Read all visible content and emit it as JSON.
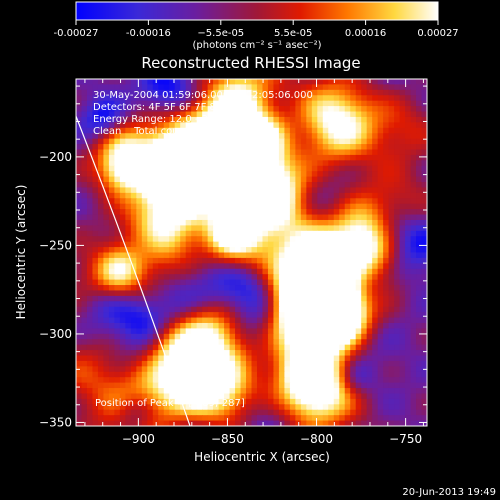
{
  "chart_data": {
    "type": "heatmap",
    "title": "Reconstructed RHESSI Image",
    "xlabel": "Heliocentric X (arcsec)",
    "ylabel": "Heliocentric Y (arcsec)",
    "xlim": [
      -935,
      -738
    ],
    "ylim": [
      -352,
      -156
    ],
    "x_ticks": [
      -900,
      -850,
      -800,
      -750
    ],
    "y_ticks": [
      -200,
      -250,
      -300,
      -350
    ],
    "colorbar": {
      "range": [
        -0.00027,
        0.00027
      ],
      "ticks": [
        "-0.00027",
        "-0.00016",
        "−5.5e-05",
        "5.5e-05",
        "0.00016",
        "0.00027"
      ],
      "unit_label": "(photons cm⁻² s⁻¹ asec⁻²)",
      "colors": [
        "#0000ff",
        "#5a1ec8",
        "#7a1e78",
        "#c81414",
        "#ff6400",
        "#ffdc3c",
        "#ffffff"
      ]
    },
    "annotations": [
      "30-May-2004 01:59:06.000 to 02:05:06.000",
      "Detectors: 4F 5F 6F 7F 8F, Att 0",
      "Energy Range: 12.0 - 25.0 keV",
      "Clean    Total counts: 2.02E+04"
    ],
    "peak_label": "Position of Peak = [-789,-287]",
    "peak": [
      -789,
      -287
    ],
    "limb_curve": [
      [
        -935,
        -177
      ],
      [
        -900,
        -268
      ],
      [
        -871,
        -352
      ]
    ]
  },
  "footer": {
    "timestamp": "20-Jun-2013 19:49"
  }
}
